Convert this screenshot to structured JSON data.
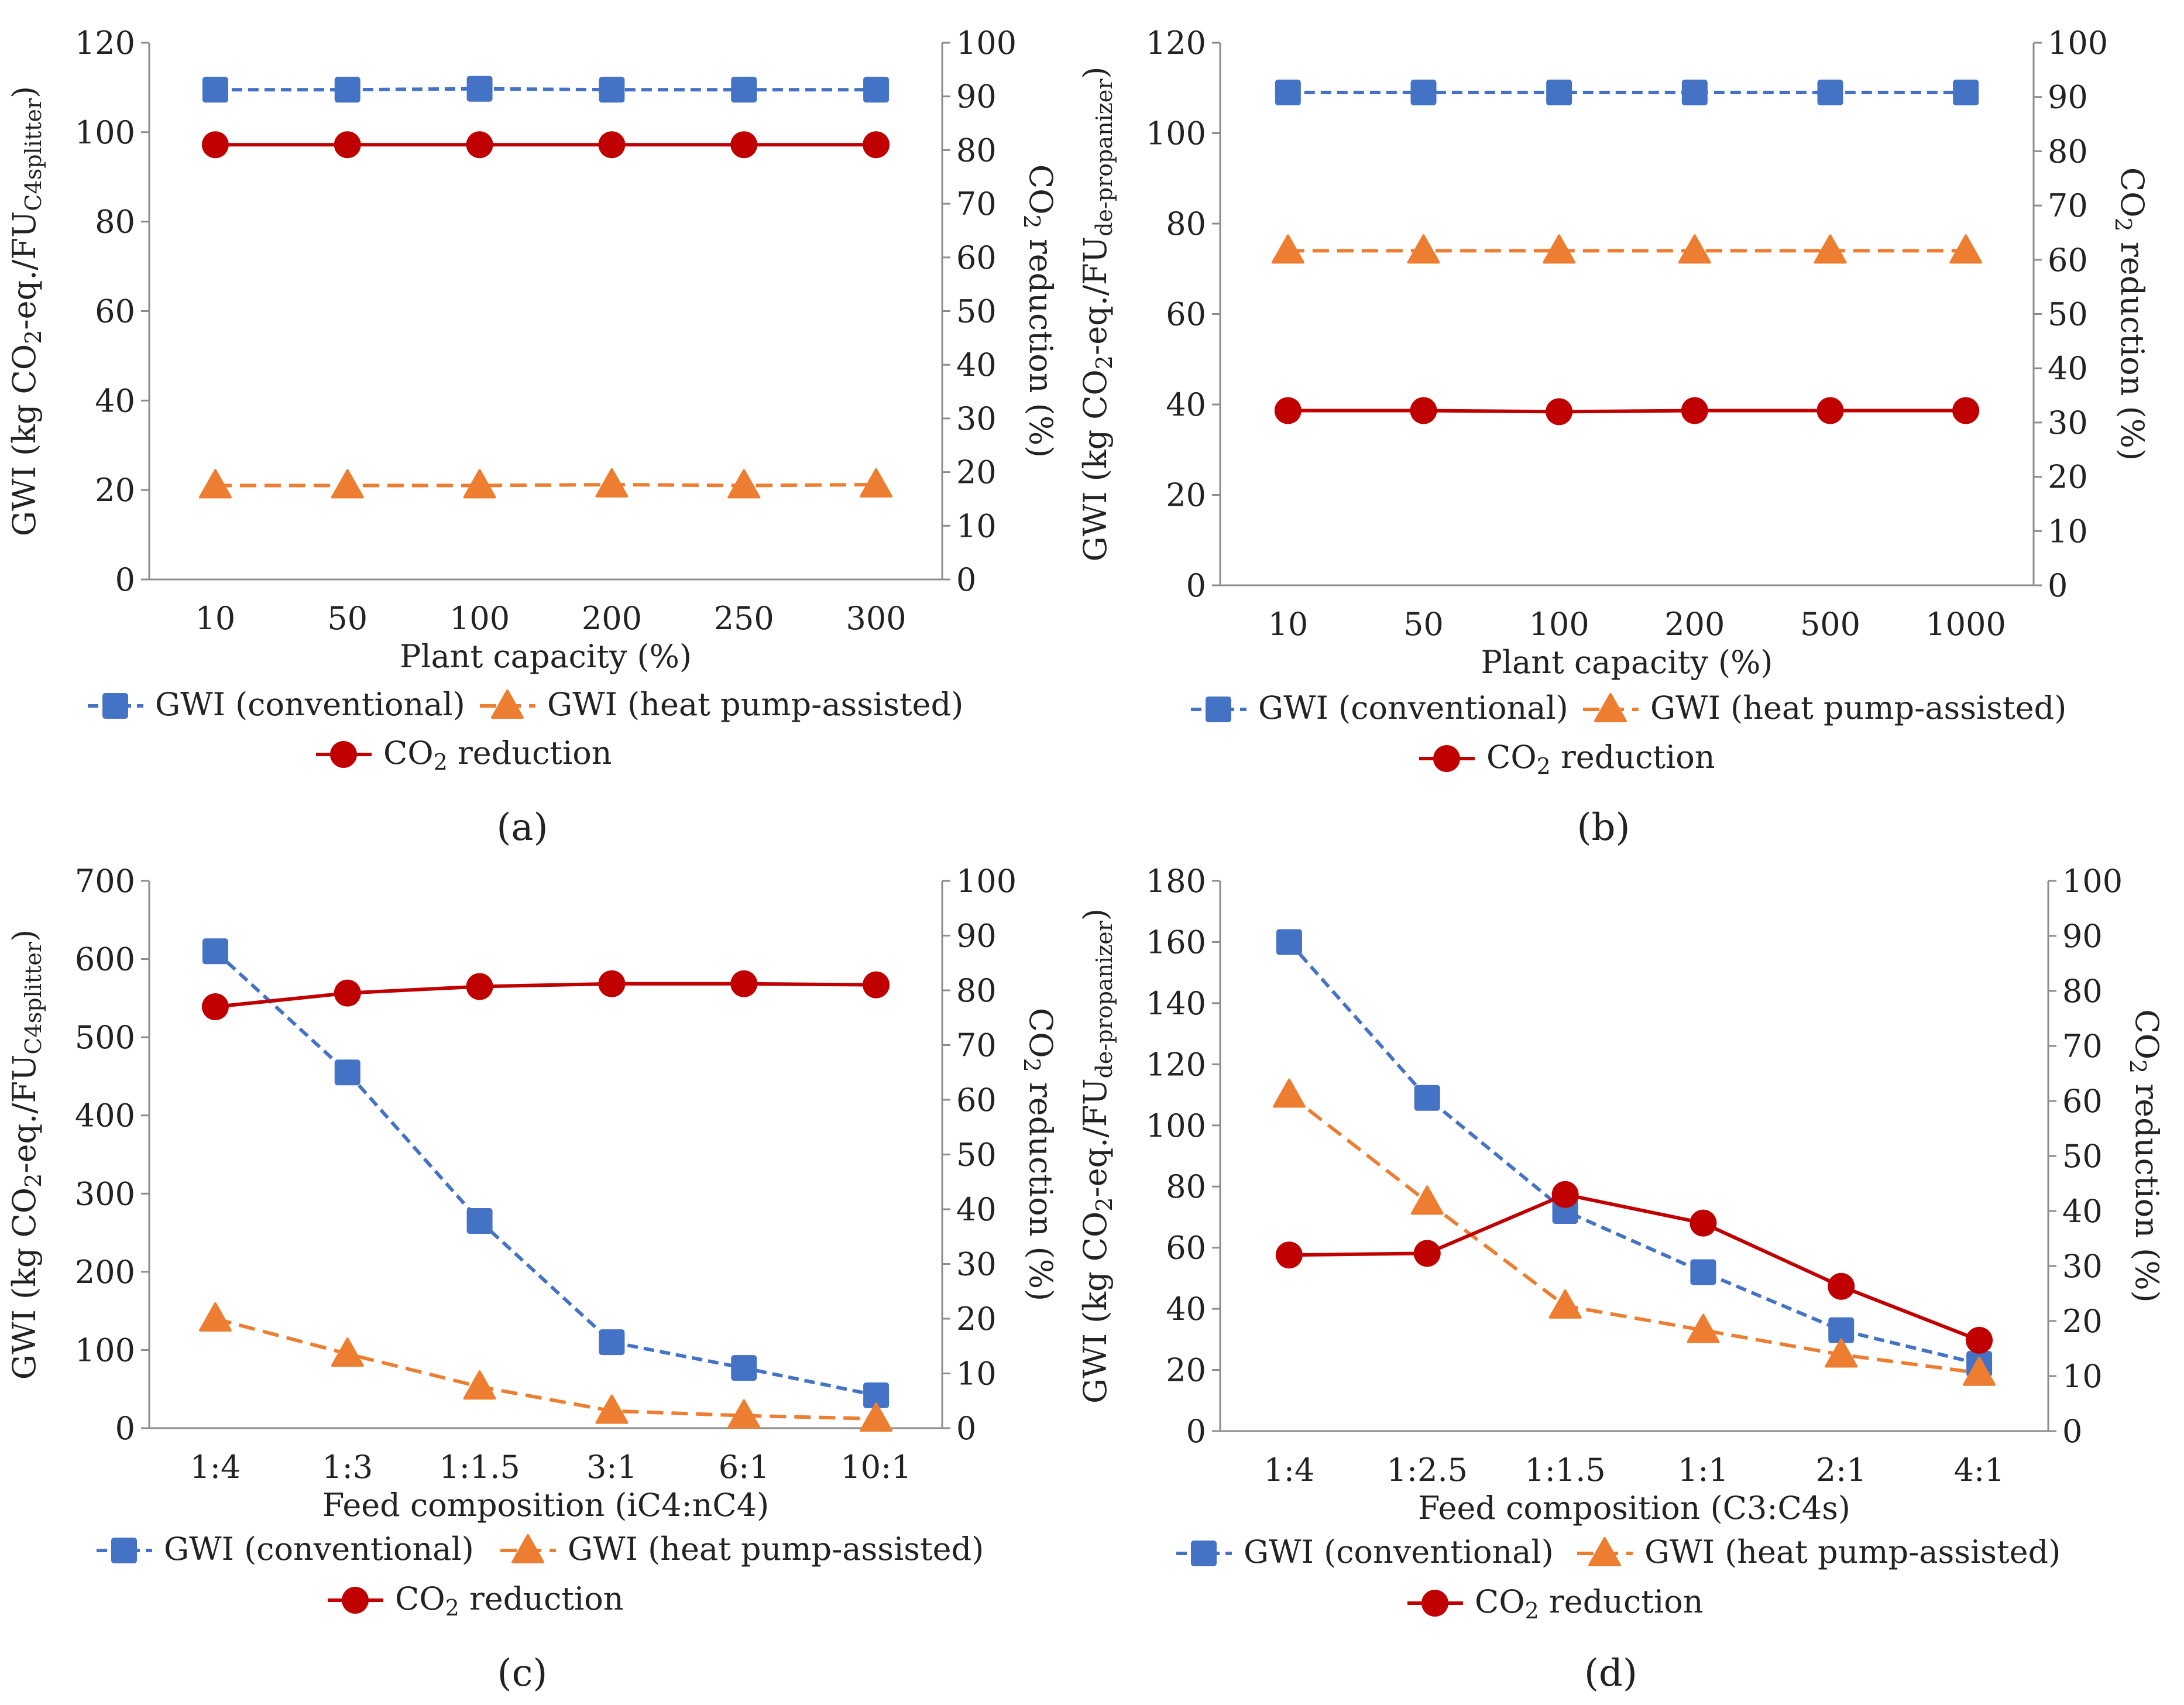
{
  "legend": {
    "conventional": "GWI (conventional)",
    "heat_pump": "GWI (heat pump-assisted)",
    "co2": "CO2 reduction"
  },
  "chart_data": [
    {
      "id": "a",
      "type": "line",
      "panel_label": "(a)",
      "xlabel": "Plant capacity (%)",
      "ylabel": "GWI (kg CO2-eq./FUC4splitter)",
      "y2label": "CO2 reduction (%)",
      "ylim": [
        0,
        120
      ],
      "ystep": 20,
      "y2lim": [
        0,
        100
      ],
      "y2step": 10,
      "categories": [
        "10",
        "50",
        "100",
        "200",
        "250",
        "300"
      ],
      "series": [
        {
          "name": "GWI (conventional)",
          "axis": "left",
          "values": [
            109.5,
            109.5,
            109.7,
            109.5,
            109.5,
            109.5
          ]
        },
        {
          "name": "GWI (heat pump-assisted)",
          "axis": "left",
          "values": [
            21,
            21,
            21,
            21.2,
            21,
            21.2
          ]
        },
        {
          "name": "CO2 reduction",
          "axis": "right",
          "values": [
            81,
            81,
            81,
            81,
            81,
            81
          ]
        }
      ]
    },
    {
      "id": "b",
      "type": "line",
      "panel_label": "(b)",
      "xlabel": "Plant capacity (%)",
      "ylabel": "GWI (kg CO2-eq./FUde-propanizer)",
      "y2label": "CO2 reduction (%)",
      "ylim": [
        0,
        120
      ],
      "ystep": 20,
      "y2lim": [
        0,
        100
      ],
      "y2step": 10,
      "categories": [
        "10",
        "50",
        "100",
        "200",
        "500",
        "1000"
      ],
      "series": [
        {
          "name": "GWI (conventional)",
          "axis": "left",
          "values": [
            109,
            109,
            109,
            109,
            109,
            109
          ]
        },
        {
          "name": "GWI (heat pump-assisted)",
          "axis": "left",
          "values": [
            74,
            74,
            74,
            74,
            74,
            74
          ]
        },
        {
          "name": "CO2 reduction",
          "axis": "right",
          "values": [
            32.2,
            32.2,
            32,
            32.2,
            32.2,
            32.2
          ]
        }
      ]
    },
    {
      "id": "c",
      "type": "line",
      "panel_label": "(c)",
      "xlabel": "Feed composition (iC4:nC4)",
      "ylabel": "GWI (kg CO2-eq./FUC4splitter)",
      "y2label": "CO2 reduction (%)",
      "ylim": [
        0,
        700
      ],
      "ystep": 100,
      "y2lim": [
        0,
        100
      ],
      "y2step": 10,
      "categories": [
        "1:4",
        "1:3",
        "1:1.5",
        "3:1",
        "6:1",
        "10:1"
      ],
      "series": [
        {
          "name": "GWI (conventional)",
          "axis": "left",
          "values": [
            610,
            455,
            265,
            110,
            77,
            42
          ]
        },
        {
          "name": "GWI (heat pump-assisted)",
          "axis": "left",
          "values": [
            140,
            95,
            53,
            22,
            16,
            12
          ]
        },
        {
          "name": "CO2 reduction",
          "axis": "right",
          "values": [
            77,
            79.5,
            80.7,
            81.2,
            81.2,
            81
          ]
        }
      ]
    },
    {
      "id": "d",
      "type": "line",
      "panel_label": "(d)",
      "xlabel": "Feed composition (C3:C4s)",
      "ylabel": "GWI (kg CO2-eq./FUde-propanizer)",
      "y2label": "CO2 reduction (%)",
      "ylim": [
        0,
        180
      ],
      "ystep": 20,
      "y2lim": [
        0,
        100
      ],
      "y2step": 10,
      "categories": [
        "1:4",
        "1:2.5",
        "1:1.5",
        "1:1",
        "2:1",
        "4:1"
      ],
      "series": [
        {
          "name": "GWI (conventional)",
          "axis": "left",
          "values": [
            160,
            109,
            72,
            52,
            33,
            22
          ]
        },
        {
          "name": "GWI (heat pump-assisted)",
          "axis": "left",
          "values": [
            110,
            75,
            41,
            33,
            25,
            19
          ]
        },
        {
          "name": "CO2 reduction",
          "axis": "right",
          "values": [
            32,
            32.3,
            43,
            37.8,
            26.3,
            16.5
          ]
        }
      ]
    }
  ],
  "colors": {
    "conventional": "#4472C4",
    "heat_pump": "#ED7D31",
    "co2": "#C00000",
    "axis": "#8c8c8c"
  }
}
